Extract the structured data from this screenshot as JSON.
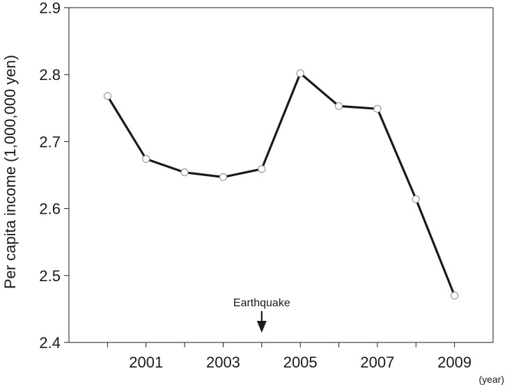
{
  "chart_data": {
    "type": "line",
    "title": "",
    "xlabel": "",
    "ylabel": "Per capita income (1,000,000 yen)",
    "x_unit_label": "(year)",
    "x": [
      2000,
      2001,
      2002,
      2003,
      2004,
      2005,
      2006,
      2007,
      2008,
      2009
    ],
    "series": [
      {
        "values": [
          2.768,
          2.674,
          2.654,
          2.647,
          2.659,
          2.802,
          2.753,
          2.749,
          2.614,
          2.47
        ],
        "color": "#1a1a1a",
        "marker": "open-circle"
      }
    ],
    "xticks": [
      2001,
      2003,
      2005,
      2007,
      2009
    ],
    "xtick_labels": [
      "2001",
      "2003",
      "2005",
      "2007",
      "2009"
    ],
    "yticks": [
      2.4,
      2.5,
      2.6,
      2.7,
      2.8,
      2.9
    ],
    "ytick_labels": [
      "2.4",
      "2.5",
      "2.6",
      "2.7",
      "2.8",
      "2.9"
    ],
    "xlim": [
      1999,
      2010
    ],
    "ylim": [
      2.4,
      2.9
    ],
    "grid": false,
    "legend": "none",
    "annotations": [
      {
        "text": "Earthquake",
        "x": 2004,
        "kind": "down-arrow"
      }
    ]
  }
}
